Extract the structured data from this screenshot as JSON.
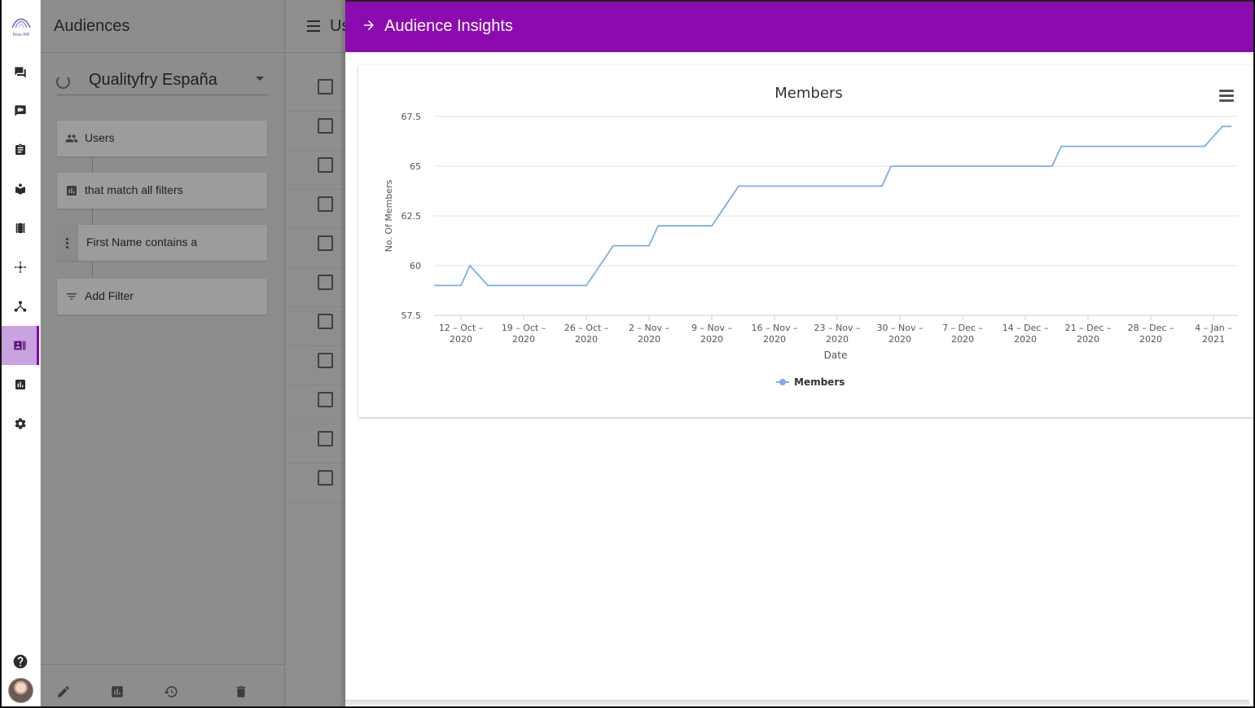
{
  "app": {
    "logo_text": "Bose AIR"
  },
  "rail": {
    "items": [
      {
        "name": "chat",
        "icon": "chat-icon"
      },
      {
        "name": "video-feedback",
        "icon": "video-feedback-icon"
      },
      {
        "name": "tasks",
        "icon": "clipboard-icon"
      },
      {
        "name": "study",
        "icon": "book-icon"
      },
      {
        "name": "media",
        "icon": "film-icon"
      },
      {
        "name": "network",
        "icon": "network-icon"
      },
      {
        "name": "flows",
        "icon": "hierarchy-icon"
      },
      {
        "name": "audiences",
        "icon": "audiences-icon",
        "active": true
      },
      {
        "name": "reports",
        "icon": "bar-chart-icon"
      },
      {
        "name": "settings",
        "icon": "gear-icon"
      }
    ],
    "help_icon": "help-icon",
    "avatar": "user-avatar"
  },
  "audiences_panel": {
    "title": "Audiences",
    "selected_audience": "Qualityfry España",
    "users_label": "Users",
    "match_label": "that match all filters",
    "filter_label": "First Name contains a",
    "add_filter_label": "Add Filter"
  },
  "list": {
    "title": "Us"
  },
  "drawer": {
    "title": "Audience Insights"
  },
  "colors": {
    "accent": "#8b0bb0",
    "series": "#7cadea"
  },
  "chart_data": {
    "type": "line",
    "title": "Members",
    "xlabel": "Date",
    "ylabel": "No. Of Members",
    "ylim": [
      57.5,
      67.5
    ],
    "yticks": [
      "57.5",
      "60",
      "62.5",
      "65",
      "67.5"
    ],
    "xtick_labels": [
      [
        "12 – Oct –",
        "2020"
      ],
      [
        "19 – Oct –",
        "2020"
      ],
      [
        "26 – Oct –",
        "2020"
      ],
      [
        "2 – Nov –",
        "2020"
      ],
      [
        "9 – Nov –",
        "2020"
      ],
      [
        "16 – Nov –",
        "2020"
      ],
      [
        "23 – Nov –",
        "2020"
      ],
      [
        "30 – Nov –",
        "2020"
      ],
      [
        "7 – Dec –",
        "2020"
      ],
      [
        "14 – Dec –",
        "2020"
      ],
      [
        "21 – Dec –",
        "2020"
      ],
      [
        "28 – Dec –",
        "2020"
      ],
      [
        "4 – Jan –",
        "2021"
      ]
    ],
    "legend": "bottom-center",
    "series": [
      {
        "name": "Members",
        "points": [
          [
            "2020-10-09",
            59
          ],
          [
            "2020-10-12",
            59
          ],
          [
            "2020-10-13",
            60
          ],
          [
            "2020-10-15",
            59
          ],
          [
            "2020-10-26",
            59
          ],
          [
            "2020-10-29",
            61
          ],
          [
            "2020-11-02",
            61
          ],
          [
            "2020-11-03",
            62
          ],
          [
            "2020-11-09",
            62
          ],
          [
            "2020-11-12",
            64
          ],
          [
            "2020-11-28",
            64
          ],
          [
            "2020-11-29",
            65
          ],
          [
            "2020-12-17",
            65
          ],
          [
            "2020-12-18",
            66
          ],
          [
            "2021-01-03",
            66
          ],
          [
            "2021-01-05",
            67
          ],
          [
            "2021-01-06",
            67
          ]
        ]
      }
    ]
  }
}
